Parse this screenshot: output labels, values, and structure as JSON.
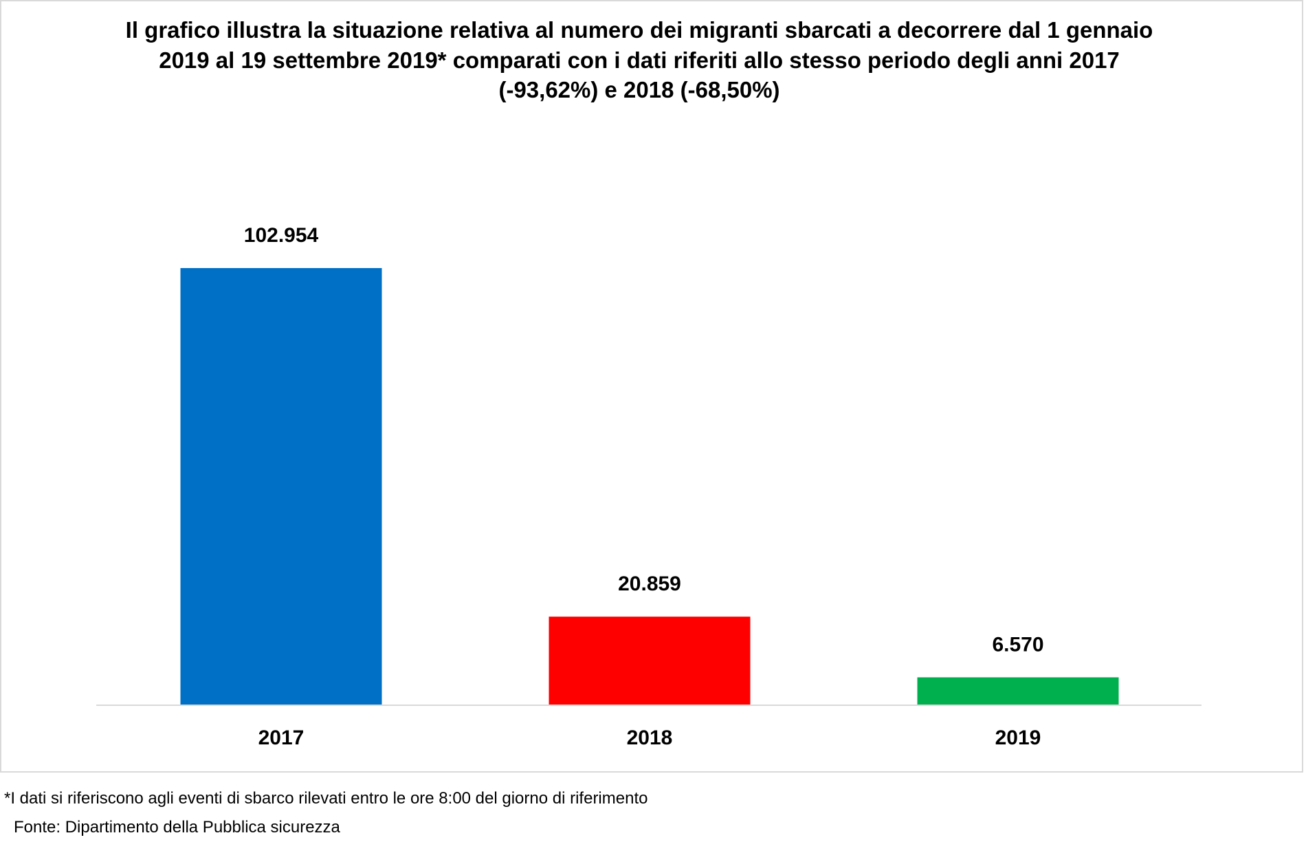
{
  "chart_data": {
    "type": "bar",
    "title": "Il grafico illustra la situazione relativa al numero dei migranti sbarcati a decorrere dal 1 gennaio 2019 al 19 settembre 2019* comparati con i dati riferiti allo stesso periodo degli anni 2017 (-93,62%) e 2018 (-68,50%)",
    "xlabel": "",
    "ylabel": "",
    "categories": [
      "2017",
      "2018",
      "2019"
    ],
    "values": [
      102954,
      20859,
      6570
    ],
    "value_labels": [
      "102.954",
      "20.859",
      "6.570"
    ],
    "colors": [
      "#0070c6",
      "#ff0000",
      "#00b04f"
    ],
    "ylim": [
      0,
      110000
    ],
    "grid": false,
    "legend": "none"
  },
  "footnotes": {
    "note": "*I dati si riferiscono agli eventi di sbarco rilevati entro le ore 8:00 del giorno di riferimento",
    "source": "Fonte: Dipartimento della Pubblica sicurezza"
  }
}
